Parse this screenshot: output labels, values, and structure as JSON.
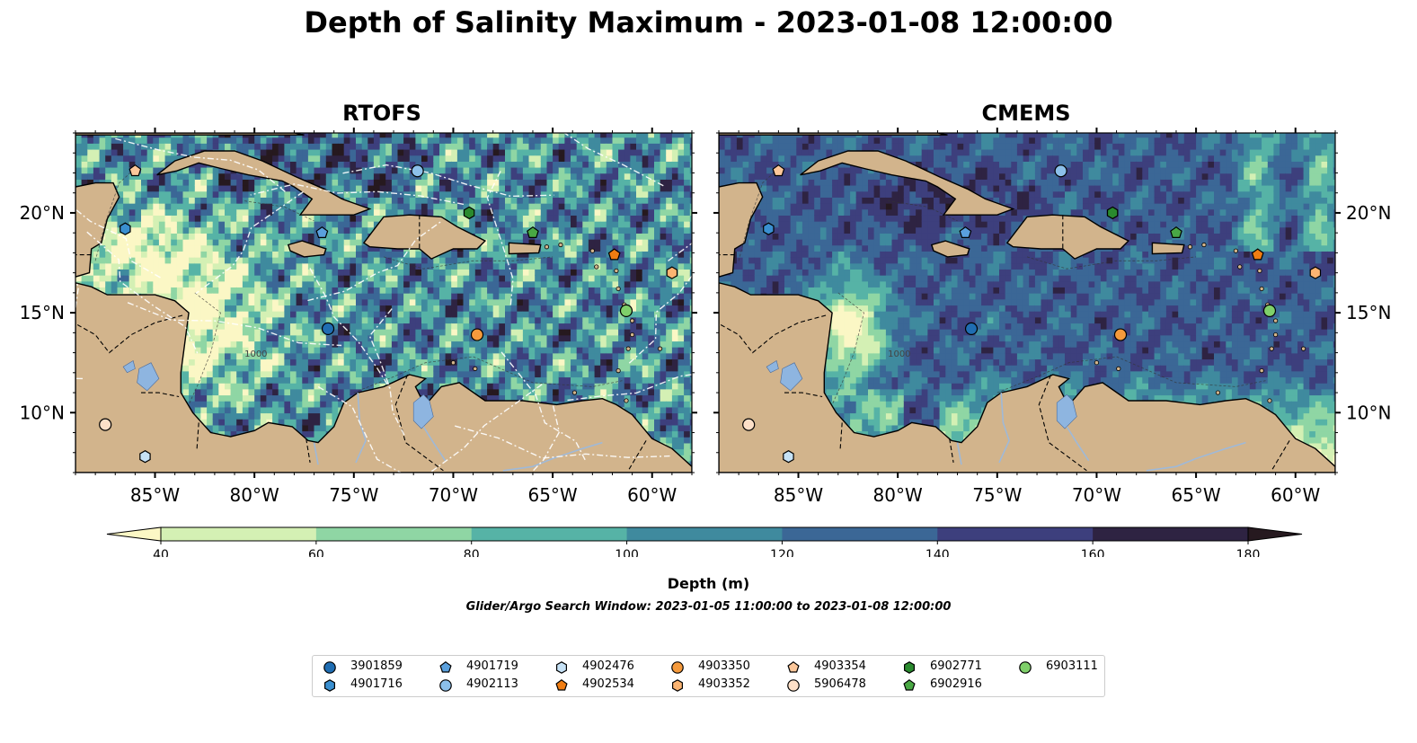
{
  "figure": {
    "title": "Depth of Salinity Maximum - 2023-01-08 12:00:00",
    "search_window": "Glider/Argo Search Window: 2023-01-05 11:00:00 to 2023-01-08 12:00:00"
  },
  "panels": [
    {
      "title": "RTOFS"
    },
    {
      "title": "CMEMS"
    }
  ],
  "map_axes": {
    "lon_ticks": [
      "85°W",
      "80°W",
      "75°W",
      "70°W",
      "65°W",
      "60°W"
    ],
    "lat_ticks": [
      "20°N",
      "15°N",
      "10°N"
    ],
    "contour_label": "1000"
  },
  "colorbar": {
    "label": "Depth (m)",
    "ticks": [
      "40",
      "60",
      "80",
      "100",
      "120",
      "140",
      "160",
      "180"
    ],
    "colors": [
      "#fbf7c5",
      "#d4f0b4",
      "#8fd6a4",
      "#56b3a6",
      "#3f8a9e",
      "#3b6796",
      "#3d3f7d",
      "#2e2342",
      "#26191f"
    ],
    "extend": "both"
  },
  "colors": {
    "land": "#d2b48c",
    "lake": "#8eb5e0",
    "river": "#9fb9d8"
  },
  "legend": {
    "items": [
      {
        "label": "3901859",
        "marker": "circle",
        "color": "#1f6db2"
      },
      {
        "label": "4901716",
        "marker": "hexagon",
        "color": "#3a8fd0"
      },
      {
        "label": "4901719",
        "marker": "pentagon",
        "color": "#5aa0dd"
      },
      {
        "label": "4902113",
        "marker": "circle",
        "color": "#8cc0ea"
      },
      {
        "label": "4902476",
        "marker": "hexagon",
        "color": "#c6e2f6"
      },
      {
        "label": "4902534",
        "marker": "pentagon",
        "color": "#f07d12"
      },
      {
        "label": "4903350",
        "marker": "circle",
        "color": "#f59a3c"
      },
      {
        "label": "4903352",
        "marker": "hexagon",
        "color": "#fbb472"
      },
      {
        "label": "4903354",
        "marker": "pentagon",
        "color": "#fcc79a"
      },
      {
        "label": "5906478",
        "marker": "circle",
        "color": "#fde0c8"
      },
      {
        "label": "6902771",
        "marker": "hexagon",
        "color": "#2a8a2e"
      },
      {
        "label": "6902916",
        "marker": "pentagon",
        "color": "#49a844"
      },
      {
        "label": "6903111",
        "marker": "circle",
        "color": "#7fd06a"
      }
    ]
  },
  "floats": [
    {
      "id": "4901716",
      "lon": -86.5,
      "lat": 19.2
    },
    {
      "id": "4903354",
      "lon": -86.0,
      "lat": 22.1
    },
    {
      "id": "4901719",
      "lon": -76.6,
      "lat": 19.0
    },
    {
      "id": "4902113",
      "lon": -71.8,
      "lat": 22.1
    },
    {
      "id": "6902771",
      "lon": -69.2,
      "lat": 20.0
    },
    {
      "id": "6902916",
      "lon": -66.0,
      "lat": 19.0
    },
    {
      "id": "4902534",
      "lon": -61.9,
      "lat": 17.9
    },
    {
      "id": "4903352",
      "lon": -59.0,
      "lat": 17.0
    },
    {
      "id": "6903111",
      "lon": -61.3,
      "lat": 15.1
    },
    {
      "id": "4903350",
      "lon": -68.8,
      "lat": 13.9
    },
    {
      "id": "3901859",
      "lon": -76.3,
      "lat": 14.2
    },
    {
      "id": "5906478",
      "lon": -87.5,
      "lat": 9.4
    },
    {
      "id": "4902476",
      "lon": -85.5,
      "lat": 7.8
    }
  ]
}
